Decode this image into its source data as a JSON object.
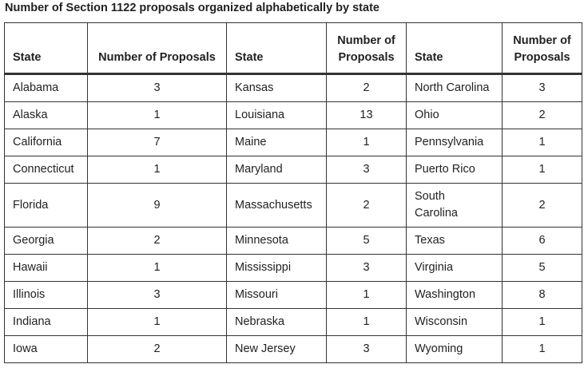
{
  "caption": "Number of Section 1122 proposals organized alphabetically by state",
  "headers": {
    "state_1": "State",
    "num_1": "Number of Proposals",
    "state_2": "State",
    "num_2_line1": "Number of",
    "num_2_line2": "Proposals",
    "state_3": "State",
    "num_3_line1": "Number of",
    "num_3_line2": "Proposals"
  },
  "rows": [
    {
      "s1": "Alabama",
      "n1": "3",
      "s2": "Kansas",
      "n2": "2",
      "s3": "North Carolina",
      "n3": "3"
    },
    {
      "s1": "Alaska",
      "n1": "1",
      "s2": "Louisiana",
      "n2": "13",
      "s3": "Ohio",
      "n3": "2"
    },
    {
      "s1": "California",
      "n1": "7",
      "s2": "Maine",
      "n2": "1",
      "s3": "Pennsylvania",
      "n3": "1"
    },
    {
      "s1": "Connecticut",
      "n1": "1",
      "s2": "Maryland",
      "n2": "3",
      "s3": "Puerto Rico",
      "n3": "1"
    },
    {
      "s1": "Florida",
      "n1": "9",
      "s2": "Massachusetts",
      "n2": "2",
      "s3_line1": "South",
      "s3_line2": "Carolina",
      "n3": "2"
    },
    {
      "s1": "Georgia",
      "n1": "2",
      "s2": "Minnesota",
      "n2": "5",
      "s3": "Texas",
      "n3": "6"
    },
    {
      "s1": "Hawaii",
      "n1": "1",
      "s2": "Mississippi",
      "n2": "3",
      "s3": "Virginia",
      "n3": "5"
    },
    {
      "s1": "Illinois",
      "n1": "3",
      "s2": "Missouri",
      "n2": "1",
      "s3": "Washington",
      "n3": "8"
    },
    {
      "s1": "Indiana",
      "n1": "1",
      "s2": "Nebraska",
      "n2": "1",
      "s3": "Wisconsin",
      "n3": "1"
    },
    {
      "s1": "Iowa",
      "n1": "2",
      "s2": "New Jersey",
      "n2": "3",
      "s3": "Wyoming",
      "n3": "1"
    }
  ]
}
